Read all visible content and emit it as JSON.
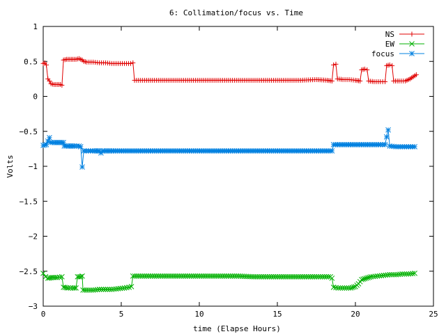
{
  "chart_data": {
    "type": "line",
    "title": "6: Collimation/focus vs. Time",
    "xlabel": "time (Elapse Hours)",
    "ylabel": "Volts",
    "xlim": [
      0,
      25
    ],
    "ylim": [
      -3,
      1
    ],
    "grid": false,
    "legend_position": "top-right",
    "x_ticks": [
      0,
      5,
      10,
      15,
      20,
      25
    ],
    "x_tick_labels": [
      "0",
      "5",
      "10",
      "15",
      "20",
      "25"
    ],
    "y_ticks": [
      1,
      0.5,
      0,
      -0.5,
      -1,
      -1.5,
      -2,
      -2.5,
      -3
    ],
    "y_tick_labels": [
      "1",
      "0.5",
      "0",
      "−0.5",
      "−1",
      "−1.5",
      "−2",
      "−2.5",
      "−3"
    ],
    "series": [
      {
        "name": "NS",
        "color": "#e00000",
        "marker": "plus",
        "points": [
          [
            0.0,
            0.47
          ],
          [
            0.1,
            0.48
          ],
          [
            0.2,
            0.45
          ],
          [
            0.3,
            0.25
          ],
          [
            0.4,
            0.22
          ],
          [
            0.5,
            0.18
          ],
          [
            0.7,
            0.17
          ],
          [
            0.9,
            0.17
          ],
          [
            1.1,
            0.17
          ],
          [
            1.2,
            0.16
          ],
          [
            1.3,
            0.52
          ],
          [
            1.5,
            0.53
          ],
          [
            1.8,
            0.53
          ],
          [
            2.1,
            0.53
          ],
          [
            2.3,
            0.54
          ],
          [
            2.5,
            0.52
          ],
          [
            2.6,
            0.5
          ],
          [
            2.8,
            0.49
          ],
          [
            3.2,
            0.49
          ],
          [
            3.6,
            0.48
          ],
          [
            4.0,
            0.48
          ],
          [
            4.4,
            0.47
          ],
          [
            4.8,
            0.47
          ],
          [
            5.2,
            0.47
          ],
          [
            5.6,
            0.47
          ],
          [
            5.75,
            0.48
          ],
          [
            5.85,
            0.23
          ],
          [
            6.5,
            0.23
          ],
          [
            7.5,
            0.23
          ],
          [
            8.5,
            0.23
          ],
          [
            9.5,
            0.23
          ],
          [
            10.5,
            0.23
          ],
          [
            11.5,
            0.23
          ],
          [
            12.5,
            0.23
          ],
          [
            13.5,
            0.23
          ],
          [
            14.5,
            0.23
          ],
          [
            15.5,
            0.23
          ],
          [
            16.5,
            0.23
          ],
          [
            17.5,
            0.24
          ],
          [
            18.2,
            0.23
          ],
          [
            18.5,
            0.22
          ],
          [
            18.6,
            0.45
          ],
          [
            18.75,
            0.46
          ],
          [
            18.85,
            0.25
          ],
          [
            19.2,
            0.24
          ],
          [
            19.6,
            0.24
          ],
          [
            20.0,
            0.23
          ],
          [
            20.3,
            0.22
          ],
          [
            20.4,
            0.38
          ],
          [
            20.6,
            0.39
          ],
          [
            20.75,
            0.38
          ],
          [
            20.85,
            0.22
          ],
          [
            21.2,
            0.21
          ],
          [
            21.6,
            0.21
          ],
          [
            21.9,
            0.21
          ],
          [
            22.0,
            0.44
          ],
          [
            22.2,
            0.45
          ],
          [
            22.35,
            0.44
          ],
          [
            22.45,
            0.22
          ],
          [
            22.8,
            0.22
          ],
          [
            23.2,
            0.22
          ],
          [
            23.5,
            0.25
          ],
          [
            23.7,
            0.28
          ],
          [
            23.9,
            0.31
          ]
        ]
      },
      {
        "name": "EW",
        "color": "#00b000",
        "marker": "x",
        "points": [
          [
            0.0,
            -2.53
          ],
          [
            0.15,
            -2.58
          ],
          [
            0.3,
            -2.6
          ],
          [
            0.6,
            -2.59
          ],
          [
            0.9,
            -2.59
          ],
          [
            1.2,
            -2.58
          ],
          [
            1.3,
            -2.73
          ],
          [
            1.6,
            -2.74
          ],
          [
            1.9,
            -2.74
          ],
          [
            2.1,
            -2.74
          ],
          [
            2.2,
            -2.58
          ],
          [
            2.4,
            -2.58
          ],
          [
            2.5,
            -2.57
          ],
          [
            2.55,
            -2.77
          ],
          [
            2.8,
            -2.77
          ],
          [
            3.2,
            -2.77
          ],
          [
            3.6,
            -2.76
          ],
          [
            4.0,
            -2.76
          ],
          [
            4.4,
            -2.76
          ],
          [
            4.8,
            -2.75
          ],
          [
            5.2,
            -2.74
          ],
          [
            5.5,
            -2.73
          ],
          [
            5.65,
            -2.72
          ],
          [
            5.75,
            -2.57
          ],
          [
            6.5,
            -2.57
          ],
          [
            7.5,
            -2.57
          ],
          [
            8.5,
            -2.57
          ],
          [
            9.5,
            -2.57
          ],
          [
            10.5,
            -2.57
          ],
          [
            11.5,
            -2.57
          ],
          [
            12.5,
            -2.57
          ],
          [
            13.5,
            -2.58
          ],
          [
            14.5,
            -2.58
          ],
          [
            15.5,
            -2.58
          ],
          [
            16.5,
            -2.58
          ],
          [
            17.5,
            -2.58
          ],
          [
            18.4,
            -2.58
          ],
          [
            18.5,
            -2.6
          ],
          [
            18.6,
            -2.73
          ],
          [
            18.9,
            -2.74
          ],
          [
            19.3,
            -2.74
          ],
          [
            19.7,
            -2.74
          ],
          [
            20.0,
            -2.72
          ],
          [
            20.2,
            -2.68
          ],
          [
            20.4,
            -2.62
          ],
          [
            20.7,
            -2.6
          ],
          [
            21.0,
            -2.58
          ],
          [
            21.4,
            -2.57
          ],
          [
            21.8,
            -2.56
          ],
          [
            22.2,
            -2.55
          ],
          [
            22.6,
            -2.55
          ],
          [
            23.0,
            -2.54
          ],
          [
            23.4,
            -2.54
          ],
          [
            23.8,
            -2.53
          ]
        ]
      },
      {
        "name": "focus",
        "color": "#0080e0",
        "marker": "star",
        "points": [
          [
            0.0,
            -0.7
          ],
          [
            0.2,
            -0.69
          ],
          [
            0.4,
            -0.59
          ],
          [
            0.45,
            -0.66
          ],
          [
            0.7,
            -0.66
          ],
          [
            1.0,
            -0.66
          ],
          [
            1.3,
            -0.66
          ],
          [
            1.35,
            -0.71
          ],
          [
            1.7,
            -0.71
          ],
          [
            2.0,
            -0.71
          ],
          [
            2.3,
            -0.71
          ],
          [
            2.4,
            -0.72
          ],
          [
            2.5,
            -1.01
          ],
          [
            2.6,
            -0.78
          ],
          [
            2.9,
            -0.78
          ],
          [
            3.3,
            -0.78
          ],
          [
            3.6,
            -0.78
          ],
          [
            3.7,
            -0.81
          ],
          [
            3.8,
            -0.78
          ],
          [
            4.5,
            -0.78
          ],
          [
            5.5,
            -0.78
          ],
          [
            6.5,
            -0.78
          ],
          [
            7.5,
            -0.78
          ],
          [
            8.5,
            -0.78
          ],
          [
            9.5,
            -0.78
          ],
          [
            10.5,
            -0.78
          ],
          [
            11.5,
            -0.78
          ],
          [
            12.5,
            -0.78
          ],
          [
            13.5,
            -0.78
          ],
          [
            14.5,
            -0.78
          ],
          [
            15.5,
            -0.78
          ],
          [
            16.5,
            -0.78
          ],
          [
            17.5,
            -0.78
          ],
          [
            18.5,
            -0.78
          ],
          [
            18.6,
            -0.69
          ],
          [
            19.2,
            -0.69
          ],
          [
            19.8,
            -0.69
          ],
          [
            20.4,
            -0.69
          ],
          [
            21.0,
            -0.69
          ],
          [
            21.6,
            -0.69
          ],
          [
            21.9,
            -0.69
          ],
          [
            22.0,
            -0.58
          ],
          [
            22.1,
            -0.48
          ],
          [
            22.2,
            -0.71
          ],
          [
            22.6,
            -0.72
          ],
          [
            23.0,
            -0.72
          ],
          [
            23.4,
            -0.72
          ],
          [
            23.8,
            -0.72
          ]
        ]
      }
    ]
  }
}
